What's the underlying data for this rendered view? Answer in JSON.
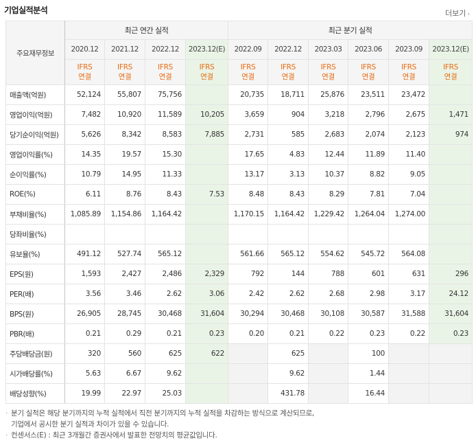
{
  "header": {
    "title": "기업실적분석",
    "more_label": "더보기"
  },
  "table": {
    "corner_label": "주요재무정보",
    "groups": {
      "annual": "최근 연간 실적",
      "quarterly": "최근 분기 실적"
    },
    "periods": [
      "2020.12",
      "2021.12",
      "2022.12",
      "2023.12(E)",
      "2022.09",
      "2022.12",
      "2023.03",
      "2023.06",
      "2023.09",
      "2023.12(E)"
    ],
    "estimate_cols": [
      3,
      9
    ],
    "ifrs_top": "IFRS",
    "ifrs_bottom": "연결",
    "rows": [
      {
        "label": "매출액(억원)",
        "group_start": false,
        "values": [
          "52,124",
          "55,807",
          "75,756",
          "",
          "20,735",
          "18,711",
          "25,876",
          "23,511",
          "23,472",
          ""
        ],
        "blank_cols": []
      },
      {
        "label": "영업이익(억원)",
        "group_start": false,
        "values": [
          "7,482",
          "10,920",
          "11,589",
          "10,205",
          "3,659",
          "904",
          "3,218",
          "2,796",
          "2,675",
          "1,471"
        ],
        "blank_cols": []
      },
      {
        "label": "당기순이익(억원)",
        "group_start": false,
        "values": [
          "5,626",
          "8,342",
          "8,583",
          "7,885",
          "2,731",
          "585",
          "2,683",
          "2,074",
          "2,123",
          "974"
        ],
        "blank_cols": []
      },
      {
        "label": "영업이익률(%)",
        "group_start": true,
        "values": [
          "14.35",
          "19.57",
          "15.30",
          "",
          "17.65",
          "4.83",
          "12.44",
          "11.89",
          "11.40",
          ""
        ],
        "blank_cols": []
      },
      {
        "label": "순이익률(%)",
        "group_start": false,
        "values": [
          "10.79",
          "14.95",
          "11.33",
          "",
          "13.17",
          "3.13",
          "10.37",
          "8.82",
          "9.05",
          ""
        ],
        "blank_cols": []
      },
      {
        "label": "ROE(%)",
        "group_start": false,
        "values": [
          "6.11",
          "8.76",
          "8.43",
          "7.53",
          "8.48",
          "8.43",
          "8.29",
          "7.81",
          "7.04",
          ""
        ],
        "blank_cols": []
      },
      {
        "label": "부채비율(%)",
        "group_start": true,
        "values": [
          "1,085.89",
          "1,154.86",
          "1,164.42",
          "",
          "1,170.15",
          "1,164.42",
          "1,229.42",
          "1,264.04",
          "1,274.00",
          ""
        ],
        "blank_cols": []
      },
      {
        "label": "당좌비율(%)",
        "group_start": false,
        "values": [
          "",
          "",
          "",
          "",
          "",
          "",
          "",
          "",
          "",
          ""
        ],
        "blank_cols": []
      },
      {
        "label": "유보율(%)",
        "group_start": false,
        "values": [
          "491.12",
          "527.74",
          "565.12",
          "",
          "561.66",
          "565.12",
          "554.62",
          "545.72",
          "564.08",
          ""
        ],
        "blank_cols": []
      },
      {
        "label": "EPS(원)",
        "group_start": true,
        "values": [
          "1,593",
          "2,427",
          "2,486",
          "2,329",
          "792",
          "144",
          "788",
          "601",
          "631",
          "296"
        ],
        "blank_cols": []
      },
      {
        "label": "PER(배)",
        "group_start": false,
        "values": [
          "3.56",
          "3.46",
          "2.62",
          "3.06",
          "2.42",
          "2.62",
          "2.68",
          "2.98",
          "3.17",
          "24.12"
        ],
        "blank_cols": []
      },
      {
        "label": "BPS(원)",
        "group_start": false,
        "values": [
          "26,905",
          "28,745",
          "30,468",
          "31,604",
          "30,294",
          "30,468",
          "30,108",
          "30,587",
          "31,588",
          "31,604"
        ],
        "blank_cols": []
      },
      {
        "label": "PBR(배)",
        "group_start": false,
        "values": [
          "0.21",
          "0.29",
          "0.21",
          "0.23",
          "0.20",
          "0.21",
          "0.22",
          "0.23",
          "0.22",
          "0.23"
        ],
        "blank_cols": []
      },
      {
        "label": "주당배당금(원)",
        "group_start": true,
        "values": [
          "320",
          "560",
          "625",
          "622",
          "",
          "625",
          "",
          "100",
          "",
          ""
        ],
        "blank_cols": [
          4,
          6,
          8,
          9
        ]
      },
      {
        "label": "시가배당률(%)",
        "group_start": false,
        "values": [
          "5.63",
          "6.67",
          "9.62",
          "",
          "",
          "9.62",
          "",
          "1.44",
          "",
          ""
        ],
        "blank_cols": [
          4,
          6,
          8,
          9
        ]
      },
      {
        "label": "배당성향(%)",
        "group_start": false,
        "values": [
          "19.99",
          "22.97",
          "25.03",
          "",
          "",
          "431.78",
          "",
          "16.44",
          "",
          ""
        ],
        "blank_cols": [
          4,
          6,
          8,
          9
        ]
      }
    ]
  },
  "notes": [
    "분기 실적은 해당 분기까지의 누적 실적에서 직전 분기까지의 누적 실적을 차감하는 방식으로 계산되므로,",
    "기업에서 공시한 분기 실적과 차이가 있을 수 있습니다.",
    "컨센서스(E) : 최근 3개월간 증권사에서 발표한 전망치의 평균값입니다."
  ]
}
